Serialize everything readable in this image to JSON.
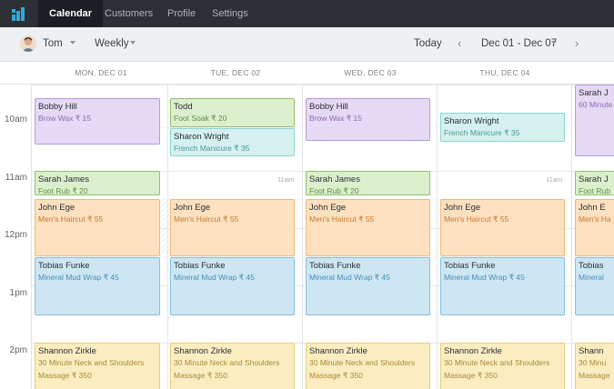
{
  "nav": {
    "items": [
      "Calendar",
      "Customers",
      "Profile",
      "Settings"
    ],
    "active": "Calendar"
  },
  "toolbar": {
    "staff": "Tom",
    "view": "Weekly",
    "today": "Today",
    "range": "Dec 01 - Dec 07"
  },
  "days": [
    "MON, DEC 01",
    "TUE, DEC 02",
    "WED, DEC 03",
    "THU, DEC 04"
  ],
  "hours": [
    "10am",
    "11am",
    "12pm",
    "1pm",
    "2pm"
  ],
  "inline_times": [
    "11am",
    "11am"
  ],
  "events": {
    "mon": [
      {
        "name": "Bobby Hill",
        "service": "Brow Wax ₹ 15"
      },
      {
        "name": "Sarah James",
        "service": "Foot Rub ₹ 20"
      },
      {
        "name": "John Ege",
        "service": "Men's Haircut ₹ 55"
      },
      {
        "name": "Tobias Funke",
        "service": "Mineral Mud Wrap ₹ 45"
      },
      {
        "name": "Shannon Zirkle",
        "service": "30 Minute Neck and Shoulders",
        "service2": "Massage ₹ 350"
      }
    ],
    "tue": [
      {
        "name": "Todd",
        "service": "Foot Soak ₹ 20"
      },
      {
        "name": "Sharon Wright",
        "service": "French Manicure ₹ 35"
      },
      {
        "name": "John Ege",
        "service": "Men's Haircut ₹ 55"
      },
      {
        "name": "Tobias Funke",
        "service": "Mineral Mud Wrap ₹ 45"
      },
      {
        "name": "Shannon Zirkle",
        "service": "30 Minute Neck and Shoulders",
        "service2": "Massage ₹ 350"
      }
    ],
    "wed": [
      {
        "name": "Bobby Hill",
        "service": "Brow Wax ₹ 15"
      },
      {
        "name": "Sarah James",
        "service": "Foot Rub ₹ 20"
      },
      {
        "name": "John Ege",
        "service": "Men's Haircut ₹ 55"
      },
      {
        "name": "Tobias Funke",
        "service": "Mineral Mud Wrap ₹ 45"
      },
      {
        "name": "Shannon Zirkle",
        "service": "30 Minute Neck and Shoulders",
        "service2": "Massage ₹ 350"
      }
    ],
    "thu": [
      {
        "name": "Sharon Wright",
        "service": "French Manicure ₹ 35"
      },
      {
        "name": "John Ege",
        "service": "Men's Haircut ₹ 55"
      },
      {
        "name": "Tobias Funke",
        "service": "Mineral Mud Wrap ₹ 45"
      },
      {
        "name": "Shannon Zirkle",
        "service": "30 Minute Neck and Shoulders",
        "service2": "Massage ₹ 350"
      }
    ],
    "fri": [
      {
        "name": "Sarah J",
        "service": "60 Minute"
      },
      {
        "name": "Sarah J",
        "service": "Foot Rub"
      },
      {
        "name": "John E",
        "service": "Men's Ha"
      },
      {
        "name": "Tobias",
        "service": "Mineral"
      },
      {
        "name": "Shann",
        "service": "30 Minu",
        "service2": "Massage"
      }
    ]
  },
  "colors": {
    "purple": "#e6d9f5",
    "green": "#dcefcd",
    "teal": "#d4f0ef",
    "orange": "#fde0bf",
    "blue": "#cde6f4",
    "yellow": "#fbedc0",
    "nav_bg": "#2c3035",
    "brand": "#2fa9d8"
  },
  "icons": [
    "logo-bars-icon",
    "avatar-photo",
    "caret-down-icon",
    "chevron-left-icon",
    "chevron-right-icon"
  ]
}
